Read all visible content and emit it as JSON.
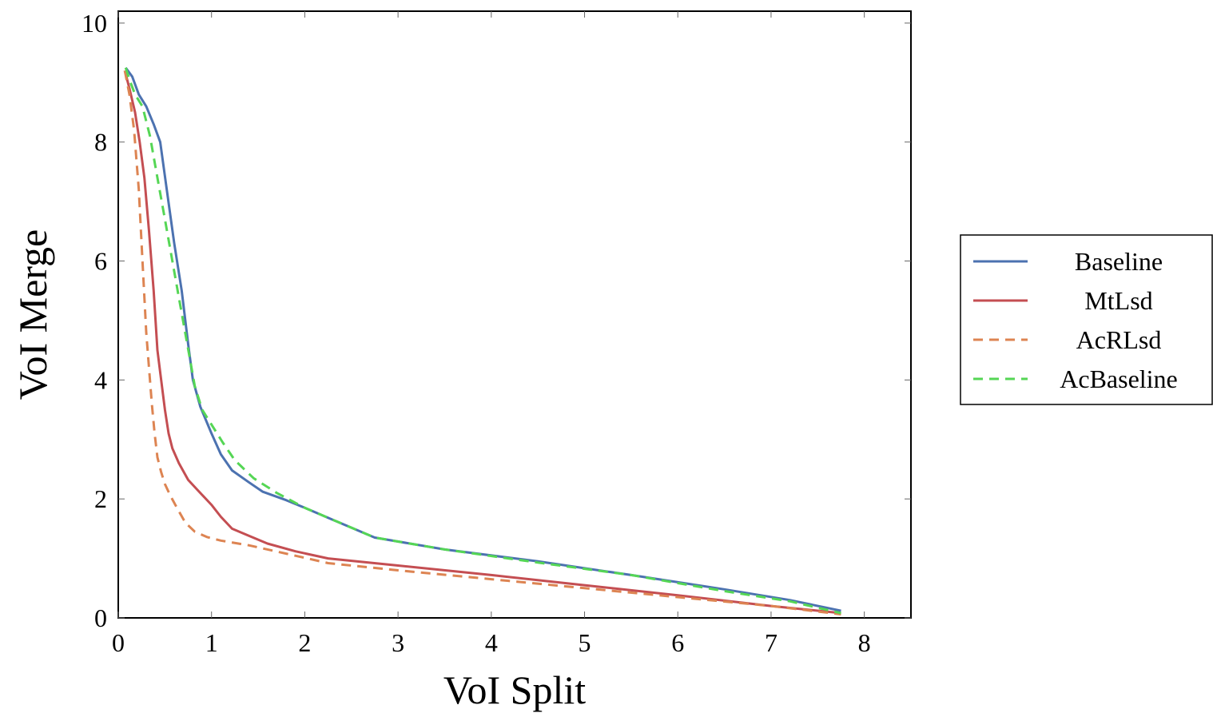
{
  "chart_data": {
    "type": "line",
    "title": "",
    "xlabel": "VoI Split",
    "ylabel": "VoI Merge",
    "xlim": [
      0,
      8.5
    ],
    "ylim": [
      0,
      10.2
    ],
    "xticks": [
      0,
      1,
      2,
      3,
      4,
      5,
      6,
      7,
      8
    ],
    "yticks": [
      0,
      2,
      4,
      6,
      8,
      10
    ],
    "grid": false,
    "legend_position": "right",
    "series": [
      {
        "name": "Baseline",
        "color": "#4c72b0",
        "dash": "solid",
        "x": [
          0.08,
          0.15,
          0.22,
          0.3,
          0.38,
          0.45,
          0.52,
          0.6,
          0.68,
          0.75,
          0.8,
          0.88,
          1.0,
          1.1,
          1.22,
          1.4,
          1.55,
          1.8,
          2.0,
          2.3,
          2.75,
          3.5,
          4.5,
          5.5,
          6.5,
          7.2,
          7.75
        ],
        "y": [
          9.25,
          9.1,
          8.8,
          8.6,
          8.3,
          8.0,
          7.2,
          6.3,
          5.5,
          4.6,
          4.0,
          3.55,
          3.1,
          2.75,
          2.48,
          2.28,
          2.12,
          1.98,
          1.85,
          1.65,
          1.35,
          1.15,
          0.95,
          0.72,
          0.48,
          0.3,
          0.12
        ]
      },
      {
        "name": "MtLsd",
        "color": "#c44e52",
        "dash": "solid",
        "x": [
          0.07,
          0.12,
          0.18,
          0.23,
          0.28,
          0.33,
          0.38,
          0.42,
          0.46,
          0.5,
          0.54,
          0.58,
          0.65,
          0.75,
          0.85,
          1.0,
          1.1,
          1.22,
          1.4,
          1.6,
          1.9,
          2.25,
          3.0,
          4.0,
          5.0,
          6.0,
          7.0,
          7.75
        ],
        "y": [
          9.2,
          8.9,
          8.5,
          8.0,
          7.4,
          6.5,
          5.5,
          4.5,
          4.0,
          3.5,
          3.1,
          2.85,
          2.6,
          2.32,
          2.15,
          1.9,
          1.7,
          1.5,
          1.38,
          1.25,
          1.12,
          1.0,
          0.88,
          0.72,
          0.55,
          0.38,
          0.2,
          0.08
        ]
      },
      {
        "name": "AcRLsd",
        "color": "#dd8452",
        "dash": "dashed",
        "x": [
          0.07,
          0.12,
          0.17,
          0.22,
          0.26,
          0.3,
          0.33,
          0.36,
          0.39,
          0.42,
          0.46,
          0.5,
          0.56,
          0.64,
          0.72,
          0.82,
          0.95,
          1.1,
          1.4,
          1.8,
          2.25,
          3.0,
          4.0,
          5.0,
          6.0,
          7.0,
          7.75
        ],
        "y": [
          9.2,
          8.8,
          8.2,
          7.2,
          6.0,
          4.8,
          4.2,
          3.6,
          3.1,
          2.7,
          2.45,
          2.25,
          2.05,
          1.82,
          1.6,
          1.45,
          1.36,
          1.3,
          1.22,
          1.08,
          0.92,
          0.8,
          0.65,
          0.5,
          0.35,
          0.2,
          0.06
        ]
      },
      {
        "name": "AcBaseline",
        "color": "#55d655",
        "dash": "dashed",
        "x": [
          0.08,
          0.12,
          0.18,
          0.26,
          0.34,
          0.42,
          0.5,
          0.58,
          0.66,
          0.74,
          0.82,
          0.9,
          1.0,
          1.12,
          1.25,
          1.45,
          1.7,
          2.0,
          2.3,
          2.75,
          3.5,
          4.5,
          5.5,
          6.5,
          7.2,
          7.75
        ],
        "y": [
          9.25,
          9.05,
          8.8,
          8.6,
          8.1,
          7.4,
          6.7,
          6.0,
          5.3,
          4.6,
          3.9,
          3.5,
          3.25,
          2.95,
          2.65,
          2.35,
          2.1,
          1.85,
          1.65,
          1.35,
          1.15,
          0.93,
          0.72,
          0.45,
          0.28,
          0.08
        ]
      }
    ]
  },
  "legend": {
    "items": [
      {
        "label": "Baseline",
        "color": "#4c72b0",
        "dash": "solid"
      },
      {
        "label": "MtLsd",
        "color": "#c44e52",
        "dash": "solid"
      },
      {
        "label": "AcRLsd",
        "color": "#dd8452",
        "dash": "dashed"
      },
      {
        "label": "AcBaseline",
        "color": "#55d655",
        "dash": "dashed"
      }
    ]
  }
}
